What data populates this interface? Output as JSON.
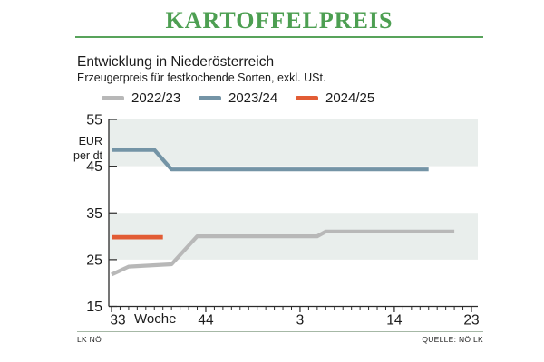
{
  "header": {
    "title": "KARTOFFELPREIS"
  },
  "subtitle": {
    "line1": "Entwicklung in Niederösterreich",
    "line2": "Erzeugerpreis für festkochende Sorten, exkl. USt."
  },
  "footer": {
    "left": "LK NÖ",
    "right": "QUELLE: NÖ LK"
  },
  "chart_data": {
    "type": "line",
    "title": "Kartoffelpreis — Entwicklung in Niederösterreich",
    "subtitle": "Erzeugerpreis für festkochende Sorten, exkl. USt.",
    "ylabel": "EUR per dt",
    "xlabel": "Woche",
    "ylim": [
      15,
      55
    ],
    "yticks": [
      15,
      25,
      35,
      45,
      55
    ],
    "bands": [
      [
        25,
        35
      ],
      [
        45,
        55
      ]
    ],
    "band_color": "#e9eeec",
    "axis_color": "#2b2b2b",
    "week_start": 33,
    "weeks_total": 43,
    "xticks": [
      {
        "label": "33",
        "week": 33
      },
      {
        "label": "44",
        "week": 44
      },
      {
        "label": "3",
        "week": 3
      },
      {
        "label": "14",
        "week": 14
      },
      {
        "label": "23",
        "week": 23
      }
    ],
    "series": [
      {
        "name": "2022/23",
        "color": "#b8b8b8",
        "points": [
          [
            33,
            21.8
          ],
          [
            35,
            23.5
          ],
          [
            40,
            24
          ],
          [
            43,
            30
          ],
          [
            5,
            30
          ],
          [
            6,
            31
          ],
          [
            21,
            31
          ]
        ]
      },
      {
        "name": "2023/24",
        "color": "#7494a6",
        "points": [
          [
            33,
            48.5
          ],
          [
            38,
            48.5
          ],
          [
            40,
            44.3
          ],
          [
            18,
            44.3
          ]
        ]
      },
      {
        "name": "2024/25",
        "color": "#e25c35",
        "points": [
          [
            33,
            29.8
          ],
          [
            39,
            29.8
          ]
        ]
      }
    ]
  }
}
